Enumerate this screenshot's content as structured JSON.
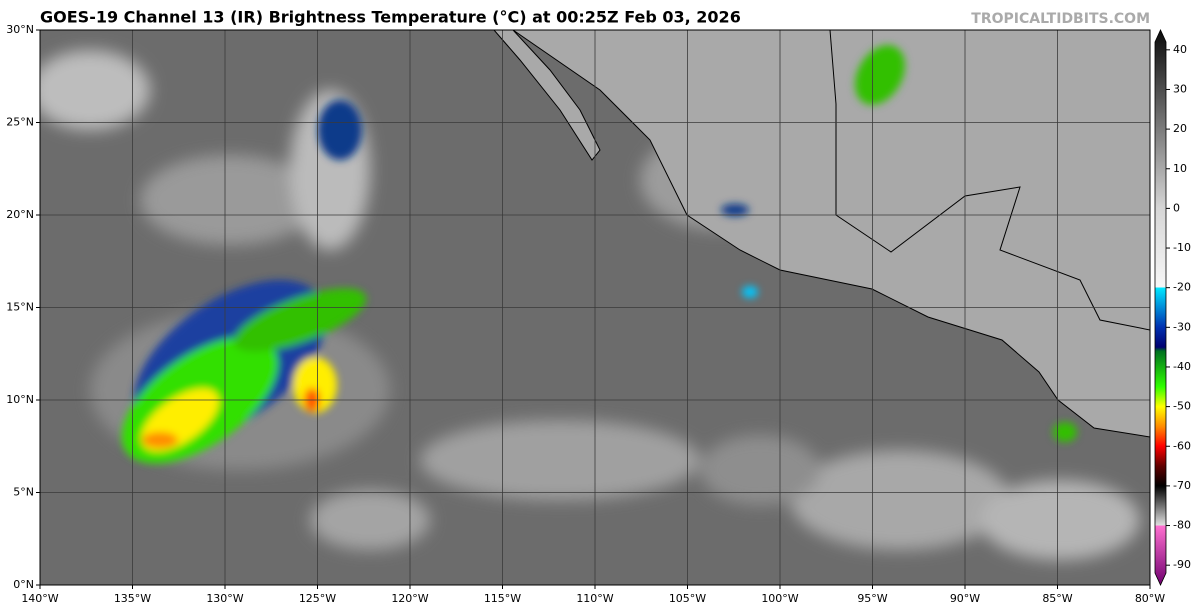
{
  "map": {
    "title": "GOES-19 Channel 13 (IR) Brightness Temperature (°C) at 00:25Z Feb 03, 2026",
    "credit": "TROPICALTIDBITS.COM",
    "lon_range": [
      -140,
      -80
    ],
    "lat_range": [
      0,
      30
    ],
    "lon_ticks": [
      {
        "value": -140,
        "label": "140°W"
      },
      {
        "value": -135,
        "label": "135°W"
      },
      {
        "value": -130,
        "label": "130°W"
      },
      {
        "value": -125,
        "label": "125°W"
      },
      {
        "value": -120,
        "label": "120°W"
      },
      {
        "value": -115,
        "label": "115°W"
      },
      {
        "value": -110,
        "label": "110°W"
      },
      {
        "value": -105,
        "label": "105°W"
      },
      {
        "value": -100,
        "label": "100°W"
      },
      {
        "value": -95,
        "label": "95°W"
      },
      {
        "value": -90,
        "label": "90°W"
      },
      {
        "value": -85,
        "label": "85°W"
      },
      {
        "value": -80,
        "label": "80°W"
      }
    ],
    "lat_ticks": [
      {
        "value": 0,
        "label": "0°N"
      },
      {
        "value": 5,
        "label": "5°N"
      },
      {
        "value": 10,
        "label": "10°N"
      },
      {
        "value": 15,
        "label": "15°N"
      },
      {
        "value": 20,
        "label": "20°N"
      },
      {
        "value": 25,
        "label": "25°N"
      },
      {
        "value": 30,
        "label": "30°N"
      }
    ],
    "grid": true,
    "colorbar": {
      "range": [
        -95,
        45
      ],
      "ticks": [
        40,
        30,
        20,
        10,
        0,
        -10,
        -20,
        -30,
        -40,
        -50,
        -60,
        -70,
        -80,
        -90
      ],
      "stops": [
        {
          "value": 45,
          "color": "#0a0a0a"
        },
        {
          "value": 0,
          "color": "#d6d6d6"
        },
        {
          "value": -20,
          "color": "#f7f7f7"
        },
        {
          "value": -20,
          "color": "#00e8ff"
        },
        {
          "value": -30,
          "color": "#0030b0"
        },
        {
          "value": -35,
          "color": "#000070"
        },
        {
          "value": -36,
          "color": "#007020"
        },
        {
          "value": -45,
          "color": "#30ff00"
        },
        {
          "value": -50,
          "color": "#ffff00"
        },
        {
          "value": -55,
          "color": "#ff8c00"
        },
        {
          "value": -60,
          "color": "#ff0000"
        },
        {
          "value": -65,
          "color": "#600000"
        },
        {
          "value": -70,
          "color": "#000000"
        },
        {
          "value": -80,
          "color": "#e0e0e0"
        },
        {
          "value": -80,
          "color": "#ff70d0"
        },
        {
          "value": -95,
          "color": "#700070"
        }
      ]
    }
  }
}
